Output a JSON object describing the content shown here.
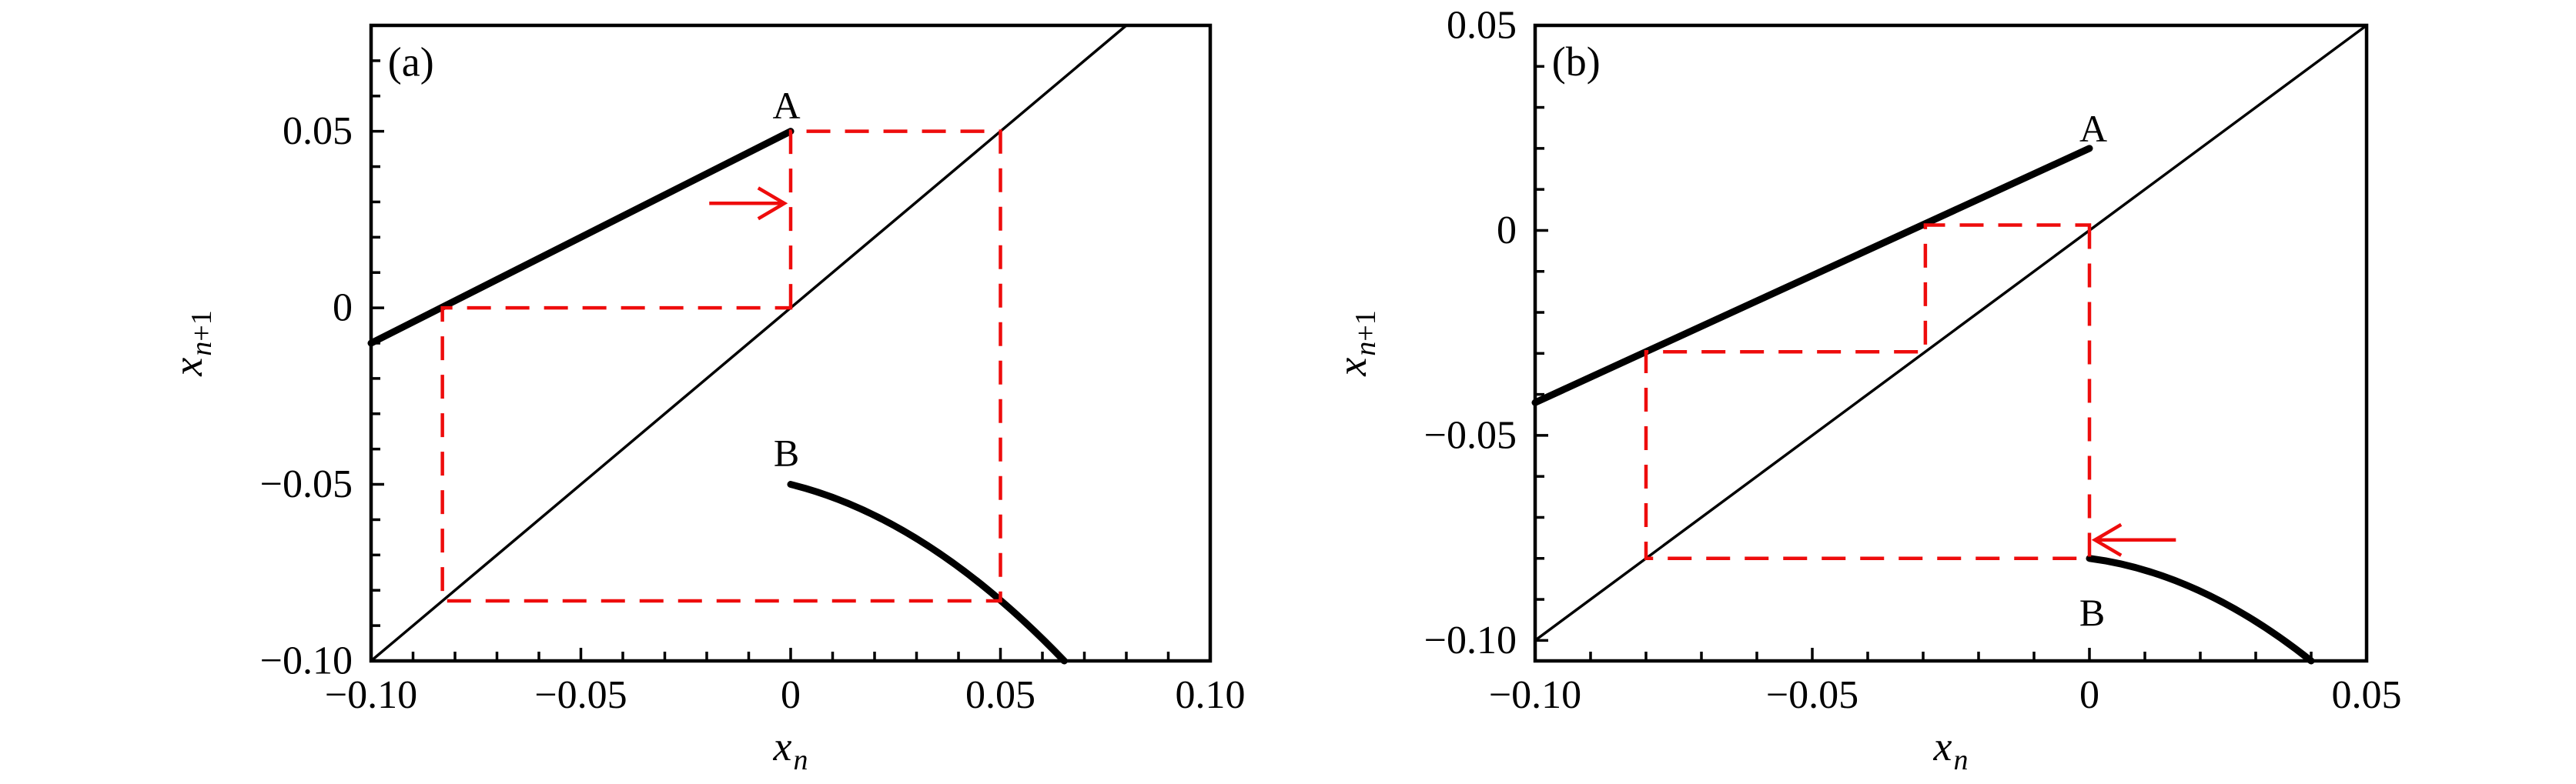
{
  "figure": {
    "background": "#ffffff",
    "axis_color": "#000000",
    "curve_color": "#000000",
    "cobweb_color": "#ee0c0c"
  },
  "chart_data": [
    {
      "type": "line",
      "panel_tag": "(a)",
      "panel_tag_at": [
        -0.0905,
        0.0697
      ],
      "x_axis": {
        "range": [
          -0.1,
          0.1
        ],
        "major_ticks": [
          -0.1,
          -0.05,
          0,
          0.05,
          0.1
        ],
        "major_tick_labels": [
          "−0.10",
          "−0.05",
          "0",
          "0.05",
          "0.10"
        ],
        "minor_tick_step": 0.01,
        "label_base": "x",
        "label_sub_italic": "n",
        "label_sub_plain": ""
      },
      "y_axis": {
        "range": [
          -0.1,
          0.08
        ],
        "major_ticks": [
          -0.1,
          -0.05,
          0,
          0.05
        ],
        "major_tick_labels": [
          "−0.10",
          "−0.05",
          "0",
          "0.05"
        ],
        "minor_tick_step": 0.01,
        "label_base": "x",
        "label_sub_italic": "n",
        "label_sub_plain": "+1"
      },
      "identity_line": {
        "from": [
          -0.1,
          -0.1
        ],
        "to": [
          0.08,
          0.08
        ]
      },
      "branch_A": {
        "label": "A",
        "kind": "line",
        "start": [
          -0.1,
          -0.01
        ],
        "end": [
          0,
          0.05
        ],
        "label_at": [
          -0.001,
          0.0573
        ]
      },
      "branch_B": {
        "label": "B",
        "kind": "quadratic",
        "start": [
          0,
          -0.05
        ],
        "control": [
          0.0326,
          -0.0596
        ],
        "end": [
          0.0652,
          -0.1
        ],
        "label_at": [
          -0.001,
          -0.041
        ]
      },
      "cobweb": {
        "closed": true,
        "points": [
          [
            0,
            0
          ],
          [
            0,
            0.05
          ],
          [
            0.05,
            0.05
          ],
          [
            0.05,
            -0.083
          ],
          [
            -0.083,
            -0.083
          ],
          [
            -0.083,
            0
          ]
        ]
      },
      "arrow": {
        "tail": [
          -0.0194,
          0.0296
        ],
        "tip": [
          -0.0015,
          0.0296
        ]
      }
    },
    {
      "type": "line",
      "panel_tag": "(b)",
      "panel_tag_at": [
        -0.0926,
        0.0412
      ],
      "x_axis": {
        "range": [
          -0.1,
          0.05
        ],
        "major_ticks": [
          -0.1,
          -0.05,
          0,
          0.05
        ],
        "major_tick_labels": [
          "−0.10",
          "−0.05",
          "0",
          "0.05"
        ],
        "minor_tick_step": 0.01,
        "label_base": "x",
        "label_sub_italic": "n",
        "label_sub_plain": ""
      },
      "y_axis": {
        "range": [
          -0.105,
          0.05
        ],
        "major_ticks": [
          -0.1,
          -0.05,
          0,
          0.05
        ],
        "major_tick_labels": [
          "−0.10",
          "−0.05",
          "0",
          "0.05"
        ],
        "minor_tick_step": 0.01,
        "label_base": "x",
        "label_sub_italic": "n",
        "label_sub_plain": "+1"
      },
      "identity_line": {
        "from": [
          -0.1,
          -0.1
        ],
        "to": [
          0.05,
          0.05
        ]
      },
      "branch_A": {
        "label": "A",
        "kind": "line",
        "start": [
          -0.1,
          -0.042
        ],
        "end": [
          0,
          0.02
        ],
        "label_at": [
          0.0007,
          0.0249
        ]
      },
      "branch_B": {
        "label": "B",
        "kind": "quadratic",
        "start": [
          0,
          -0.08
        ],
        "control": [
          0.02,
          -0.0835
        ],
        "end": [
          0.04,
          -0.105
        ],
        "label_at": [
          0.0005,
          -0.0932
        ]
      },
      "cobweb": {
        "closed": true,
        "points": [
          [
            0,
            0.0013
          ],
          [
            0,
            -0.08
          ],
          [
            -0.08,
            -0.08
          ],
          [
            -0.08,
            -0.0296
          ],
          [
            -0.0296,
            -0.0296
          ],
          [
            -0.0296,
            0.0013
          ]
        ]
      },
      "arrow": {
        "tail": [
          0.0156,
          -0.0755
        ],
        "tip": [
          0.001,
          -0.0755
        ]
      }
    }
  ]
}
